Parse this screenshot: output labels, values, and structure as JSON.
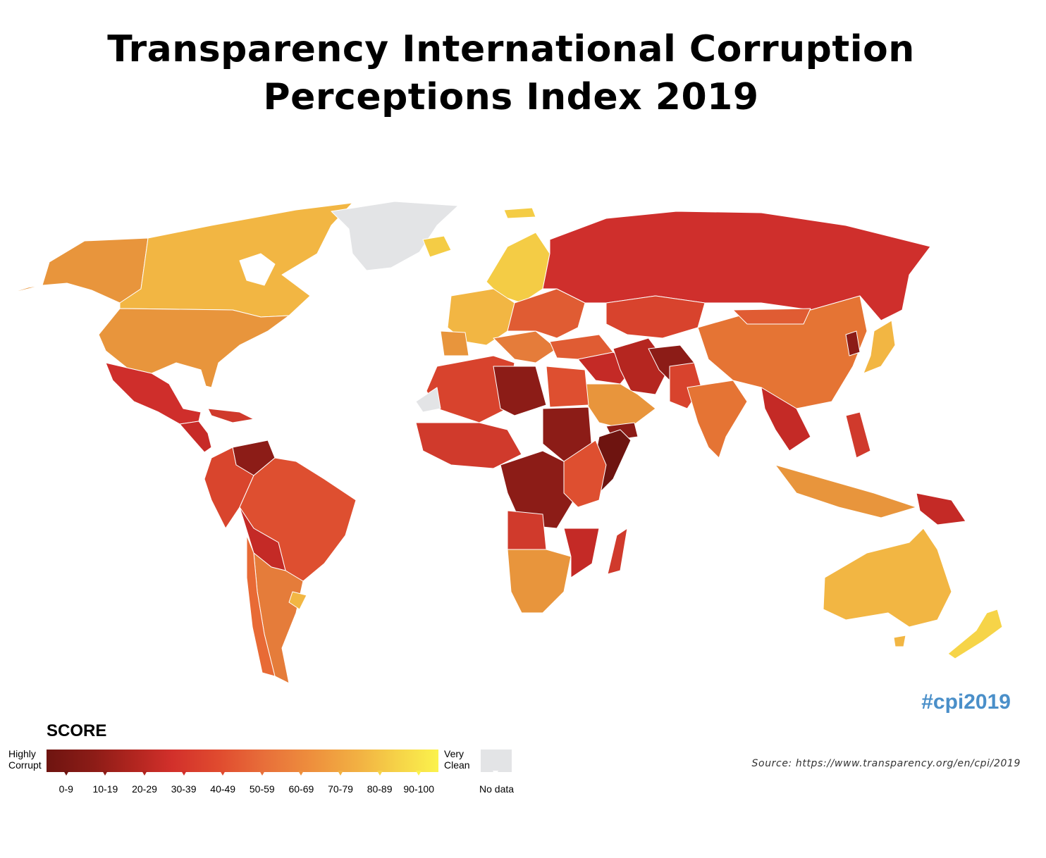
{
  "title": {
    "line1": "Transparency International Corruption",
    "line2": "Perceptions Index 2019"
  },
  "hashtag": "#cpi2019",
  "source": "Source: https://www.transparency.org/en/cpi/2019",
  "legend": {
    "title": "SCORE",
    "low_label": [
      "Highly",
      "Corrupt"
    ],
    "high_label": [
      "Very",
      "Clean"
    ],
    "bins": [
      "0-9",
      "10-19",
      "20-29",
      "30-39",
      "40-49",
      "50-59",
      "60-69",
      "70-79",
      "80-89",
      "90-100"
    ],
    "bin_colors": [
      "#6e1410",
      "#8c1c17",
      "#b0251f",
      "#d2302b",
      "#e04b2f",
      "#e8703a",
      "#ee903d",
      "#f2b243",
      "#f6d448",
      "#fbf24c"
    ],
    "no_data_label": "No data",
    "no_data_color": "#e3e4e6"
  }
}
